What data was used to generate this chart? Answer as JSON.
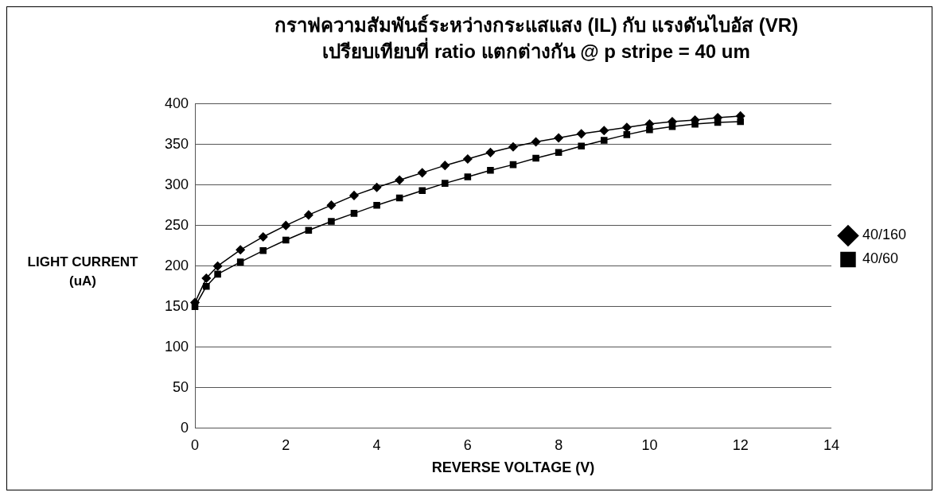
{
  "chart_data": {
    "type": "line",
    "title": "กราฟความสัมพันธ์ระหว่างกระแสแสง (IL) กับ แรงดันไบอัส (VR)",
    "subtitle": "เปรียบเทียบที่ ratio แตกต่างกัน @ p stripe = 40 um",
    "xlabel": "REVERSE VOLTAGE (V)",
    "ylabel": "LIGHT CURRENT (uA)",
    "x": [
      0,
      0.25,
      0.5,
      1,
      1.5,
      2,
      2.5,
      3,
      3.5,
      4,
      4.5,
      5,
      5.5,
      6,
      6.5,
      7,
      7.5,
      8,
      8.5,
      9,
      9.5,
      10,
      10.5,
      11,
      11.5,
      12
    ],
    "xlim": [
      0,
      14
    ],
    "xticks": [
      0,
      2,
      4,
      6,
      8,
      10,
      12,
      14
    ],
    "ylim": [
      0,
      400
    ],
    "yticks": [
      0,
      50,
      100,
      150,
      200,
      250,
      300,
      350,
      400
    ],
    "grid": "y",
    "legend": "right",
    "line_style": "solid",
    "series": [
      {
        "name": "40/160",
        "color": "#000000",
        "marker": "diamond",
        "values": [
          155,
          185,
          200,
          220,
          236,
          250,
          263,
          275,
          287,
          297,
          306,
          315,
          324,
          332,
          340,
          347,
          353,
          358,
          363,
          367,
          371,
          375,
          378,
          380,
          383,
          385
        ]
      },
      {
        "name": "40/60",
        "color": "#000000",
        "marker": "square",
        "values": [
          150,
          175,
          190,
          205,
          219,
          232,
          244,
          255,
          265,
          275,
          284,
          293,
          302,
          310,
          318,
          325,
          333,
          340,
          348,
          355,
          362,
          368,
          372,
          375,
          377,
          378
        ]
      }
    ]
  }
}
